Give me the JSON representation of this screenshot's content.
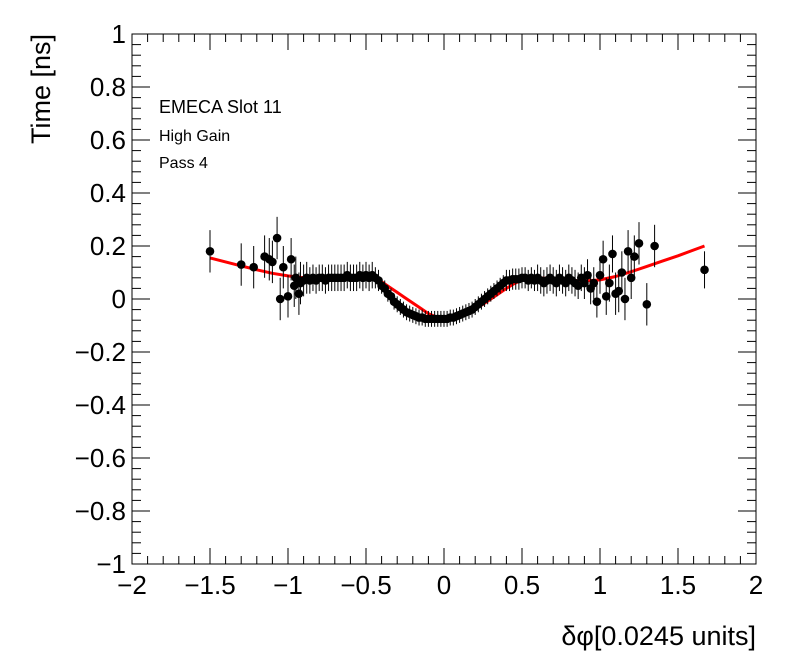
{
  "chart_data": {
    "type": "scatter",
    "xlabel": "δφ[0.0245 units]",
    "ylabel": "Time [ns]",
    "xlim": [
      -2,
      2
    ],
    "ylim": [
      -1,
      1
    ],
    "x_ticks": [
      "−2",
      "−1.5",
      "−1",
      "−0.5",
      "0",
      "0.5",
      "1",
      "1.5",
      "2"
    ],
    "y_ticks": [
      "−1",
      "−0.8",
      "−0.6",
      "−0.4",
      "−0.2",
      "0",
      "0.2",
      "0.4",
      "0.6",
      "0.8",
      "1"
    ],
    "grid": false,
    "annotations": [
      "EMECA Slot 11",
      "High Gain",
      "Pass 4"
    ],
    "colors": {
      "points": "#000000",
      "fit": "#ff0000"
    },
    "series": [
      {
        "kind": "points",
        "x": [
          -1.5,
          -1.3,
          -1.22,
          -1.15,
          -1.12,
          -1.1,
          -1.07,
          -1.05,
          -1.03,
          -1.0,
          -0.98,
          -0.96,
          -0.95,
          -0.93,
          -0.92,
          -0.9,
          -0.88,
          -0.86,
          -0.84,
          -0.82,
          -0.8,
          -0.78,
          -0.76,
          -0.74,
          -0.72,
          -0.7,
          -0.68,
          -0.66,
          -0.64,
          -0.62,
          -0.6,
          -0.58,
          -0.56,
          -0.54,
          -0.52,
          -0.5,
          -0.48,
          -0.46,
          -0.44,
          -0.42,
          -0.4,
          -0.38,
          -0.36,
          -0.34,
          -0.32,
          -0.3,
          -0.28,
          -0.26,
          -0.24,
          -0.22,
          -0.2,
          -0.18,
          -0.16,
          -0.14,
          -0.12,
          -0.1,
          -0.08,
          -0.06,
          -0.04,
          -0.02,
          0.0,
          0.02,
          0.04,
          0.06,
          0.08,
          0.1,
          0.12,
          0.14,
          0.16,
          0.18,
          0.2,
          0.22,
          0.24,
          0.26,
          0.28,
          0.3,
          0.32,
          0.34,
          0.36,
          0.38,
          0.4,
          0.42,
          0.44,
          0.46,
          0.48,
          0.5,
          0.52,
          0.54,
          0.56,
          0.58,
          0.6,
          0.62,
          0.64,
          0.66,
          0.68,
          0.7,
          0.72,
          0.74,
          0.76,
          0.78,
          0.8,
          0.82,
          0.84,
          0.86,
          0.88,
          0.9,
          0.92,
          0.94,
          0.96,
          0.98,
          1.0,
          1.02,
          1.04,
          1.06,
          1.08,
          1.1,
          1.12,
          1.14,
          1.16,
          1.18,
          1.2,
          1.22,
          1.25,
          1.3,
          1.35,
          1.67
        ],
        "y": [
          0.18,
          0.13,
          0.12,
          0.16,
          0.15,
          0.14,
          0.23,
          0.0,
          0.12,
          0.01,
          0.15,
          0.05,
          0.08,
          0.02,
          0.06,
          0.07,
          0.08,
          0.07,
          0.08,
          0.07,
          0.08,
          0.08,
          0.07,
          0.08,
          0.08,
          0.08,
          0.08,
          0.08,
          0.08,
          0.09,
          0.08,
          0.08,
          0.08,
          0.09,
          0.08,
          0.09,
          0.08,
          0.09,
          0.08,
          0.07,
          0.05,
          0.04,
          0.02,
          0.01,
          -0.01,
          -0.02,
          -0.03,
          -0.04,
          -0.05,
          -0.055,
          -0.06,
          -0.065,
          -0.07,
          -0.07,
          -0.075,
          -0.075,
          -0.075,
          -0.075,
          -0.075,
          -0.075,
          -0.075,
          -0.075,
          -0.07,
          -0.07,
          -0.065,
          -0.06,
          -0.055,
          -0.05,
          -0.045,
          -0.04,
          -0.03,
          -0.02,
          -0.01,
          0.0,
          0.01,
          0.02,
          0.03,
          0.04,
          0.05,
          0.06,
          0.07,
          0.07,
          0.075,
          0.075,
          0.075,
          0.08,
          0.08,
          0.07,
          0.08,
          0.07,
          0.08,
          0.07,
          0.06,
          0.07,
          0.08,
          0.07,
          0.06,
          0.08,
          0.07,
          0.06,
          0.08,
          0.07,
          0.06,
          0.05,
          0.08,
          0.06,
          0.09,
          0.04,
          0.06,
          -0.01,
          0.09,
          0.15,
          0.01,
          0.06,
          0.17,
          0.02,
          0.03,
          0.1,
          0.0,
          0.18,
          0.08,
          0.16,
          0.21,
          -0.02,
          0.2,
          0.11
        ],
        "yerr": [
          0.08,
          0.08,
          0.08,
          0.08,
          0.08,
          0.08,
          0.08,
          0.08,
          0.08,
          0.08,
          0.08,
          0.08,
          0.08,
          0.08,
          0.08,
          0.06,
          0.06,
          0.05,
          0.05,
          0.05,
          0.05,
          0.05,
          0.05,
          0.05,
          0.05,
          0.05,
          0.05,
          0.05,
          0.05,
          0.05,
          0.05,
          0.05,
          0.05,
          0.05,
          0.05,
          0.05,
          0.05,
          0.05,
          0.04,
          0.04,
          0.03,
          0.03,
          0.03,
          0.03,
          0.03,
          0.03,
          0.03,
          0.03,
          0.03,
          0.03,
          0.03,
          0.03,
          0.03,
          0.03,
          0.03,
          0.03,
          0.03,
          0.03,
          0.03,
          0.03,
          0.03,
          0.03,
          0.03,
          0.03,
          0.03,
          0.03,
          0.03,
          0.03,
          0.03,
          0.03,
          0.03,
          0.03,
          0.03,
          0.03,
          0.03,
          0.03,
          0.03,
          0.03,
          0.03,
          0.03,
          0.04,
          0.04,
          0.04,
          0.04,
          0.04,
          0.04,
          0.04,
          0.04,
          0.04,
          0.04,
          0.05,
          0.05,
          0.05,
          0.05,
          0.05,
          0.05,
          0.05,
          0.05,
          0.05,
          0.05,
          0.05,
          0.05,
          0.05,
          0.05,
          0.05,
          0.06,
          0.06,
          0.06,
          0.06,
          0.06,
          0.07,
          0.07,
          0.07,
          0.07,
          0.07,
          0.08,
          0.08,
          0.08,
          0.08,
          0.08,
          0.08,
          0.08,
          0.08,
          0.08,
          0.08,
          0.07
        ]
      },
      {
        "kind": "fit",
        "x": [
          -1.5,
          -1.4,
          -1.3,
          -1.2,
          -1.1,
          -1.0,
          -0.9,
          -0.8,
          -0.7,
          -0.6,
          -0.5,
          -0.45,
          -0.4,
          -0.35,
          -0.3,
          -0.25,
          -0.2,
          -0.15,
          -0.1,
          -0.05,
          0.0,
          0.05,
          0.1,
          0.15,
          0.2,
          0.25,
          0.3,
          0.35,
          0.4,
          0.45,
          0.5,
          0.55,
          0.6,
          0.7,
          0.8,
          0.9,
          1.0,
          1.1,
          1.2,
          1.3,
          1.4,
          1.5,
          1.6,
          1.67
        ],
        "y": [
          0.155,
          0.14,
          0.125,
          0.11,
          0.097,
          0.087,
          0.08,
          0.078,
          0.08,
          0.083,
          0.087,
          0.085,
          0.065,
          0.045,
          0.025,
          0.005,
          -0.015,
          -0.035,
          -0.055,
          -0.068,
          -0.072,
          -0.07,
          -0.063,
          -0.052,
          -0.037,
          -0.02,
          0.0,
          0.02,
          0.04,
          0.058,
          0.072,
          0.08,
          0.08,
          0.076,
          0.07,
          0.068,
          0.072,
          0.085,
          0.103,
          0.123,
          0.143,
          0.163,
          0.185,
          0.2
        ]
      }
    ]
  }
}
